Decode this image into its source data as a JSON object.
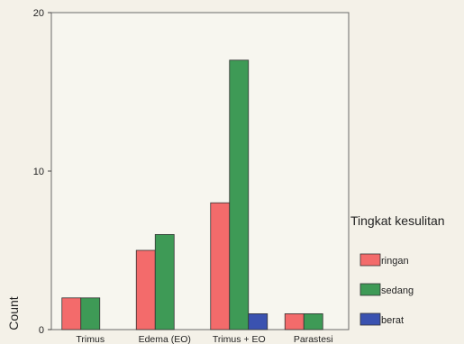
{
  "chart_data": {
    "type": "bar",
    "title": "",
    "xlabel": "",
    "ylabel": "Count",
    "ylim": [
      0,
      20
    ],
    "yticks": [
      0,
      10,
      20
    ],
    "grid": false,
    "legend_position": "right",
    "legend_title": "Tingkat kesulitan",
    "categories": [
      "Trimus",
      "Edema (EO)",
      "Trimus + EO",
      "Parastesi"
    ],
    "series": [
      {
        "name": "ringan",
        "color": "#f36b6b",
        "values": [
          2,
          5,
          8,
          1
        ]
      },
      {
        "name": "sedang",
        "color": "#3e9a56",
        "values": [
          2,
          6,
          17,
          1
        ]
      },
      {
        "name": "berat",
        "color": "#3a52b0",
        "values": [
          0,
          0,
          1,
          0
        ]
      }
    ]
  }
}
